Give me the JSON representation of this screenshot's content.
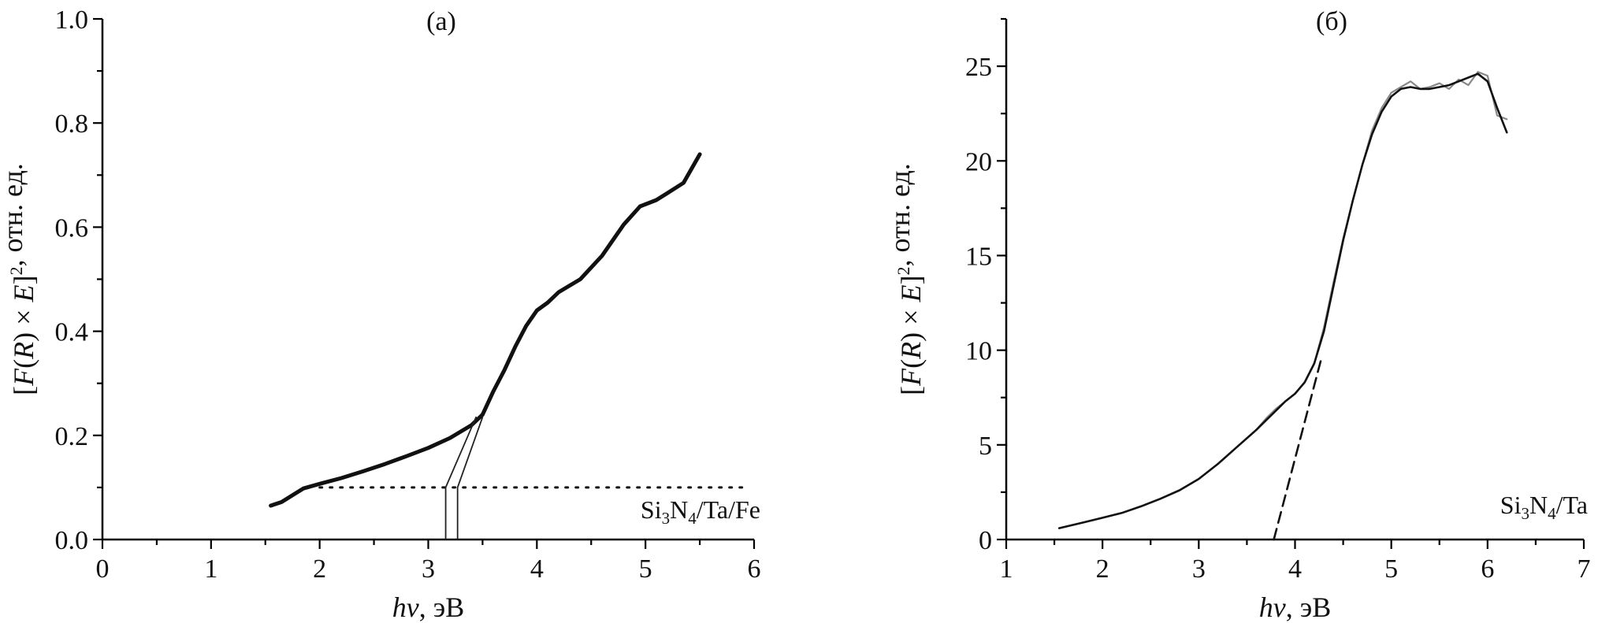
{
  "chart_data": [
    {
      "type": "line",
      "panel_label": "(а)",
      "sample_label": {
        "main": [
          "Si",
          "N",
          "/Ta/Fe"
        ],
        "subs": [
          "3",
          "4"
        ]
      },
      "xlabel": {
        "italic": "hv",
        "rest": ", эВ"
      },
      "ylabel": {
        "parts": [
          "[",
          "F",
          "(",
          "R",
          ") × ",
          "E",
          "]",
          ", отн. ед."
        ],
        "sup": "2"
      },
      "xlim": [
        0,
        6
      ],
      "ylim": [
        0,
        1.0
      ],
      "x_ticks": [
        0,
        1,
        2,
        3,
        4,
        5,
        6
      ],
      "x_tick_labels": [
        "0",
        "1",
        "2",
        "3",
        "4",
        "5",
        "6"
      ],
      "y_ticks": [
        0,
        0.2,
        0.4,
        0.6,
        0.8,
        1.0
      ],
      "y_tick_labels": [
        "0.0",
        "0.2",
        "0.4",
        "0.6",
        "0.8",
        "1.0"
      ],
      "grid": false,
      "series": [
        {
          "style": "solid-thick",
          "color": "#111111",
          "x": [
            1.55,
            1.65,
            1.75,
            1.85,
            2.0,
            2.2,
            2.4,
            2.6,
            2.8,
            3.0,
            3.2,
            3.4,
            3.5,
            3.6,
            3.7,
            3.8,
            3.9,
            4.0,
            4.1,
            4.2,
            4.4,
            4.6,
            4.8,
            4.95,
            5.1,
            5.2,
            5.35,
            5.5
          ],
          "y": [
            0.065,
            0.072,
            0.085,
            0.098,
            0.107,
            0.118,
            0.131,
            0.145,
            0.16,
            0.176,
            0.195,
            0.22,
            0.24,
            0.285,
            0.325,
            0.37,
            0.41,
            0.44,
            0.455,
            0.475,
            0.5,
            0.545,
            0.605,
            0.64,
            0.652,
            0.665,
            0.685,
            0.74
          ]
        },
        {
          "style": "dotted",
          "color": "#111111",
          "x": [
            2.0,
            5.95
          ],
          "y": [
            0.1,
            0.1
          ]
        },
        {
          "style": "thin-double",
          "color": "#222222",
          "x": [
            3.16,
            3.44
          ],
          "y": [
            0.1,
            0.235
          ]
        },
        {
          "style": "thin-double",
          "color": "#222222",
          "x": [
            3.27,
            3.5
          ],
          "y": [
            0.1,
            0.235
          ]
        },
        {
          "style": "thin-double",
          "color": "#222222",
          "x": [
            3.16,
            3.16
          ],
          "y": [
            0.0,
            0.1
          ]
        },
        {
          "style": "thin-double",
          "color": "#222222",
          "x": [
            3.27,
            3.27
          ],
          "y": [
            0.0,
            0.1
          ]
        }
      ]
    },
    {
      "type": "line",
      "panel_label": "(б)",
      "sample_label": {
        "main": [
          "Si",
          "N",
          "/Ta"
        ],
        "subs": [
          "3",
          "4"
        ]
      },
      "xlabel": {
        "italic": "hv",
        "rest": ", эВ"
      },
      "ylabel": {
        "parts": [
          "[",
          "F",
          "(",
          "R",
          ") × ",
          "E",
          "]",
          ", отн. ед."
        ],
        "sup": "2"
      },
      "xlim": [
        1,
        7
      ],
      "ylim": [
        0,
        27.5
      ],
      "x_ticks": [
        1,
        2,
        3,
        4,
        5,
        6,
        7
      ],
      "x_tick_labels": [
        "1",
        "2",
        "3",
        "4",
        "5",
        "6",
        "7"
      ],
      "y_ticks": [
        0,
        5,
        10,
        15,
        20,
        25
      ],
      "y_tick_labels": [
        "0",
        "5",
        "10",
        "15",
        "20",
        "25"
      ],
      "grid": false,
      "series": [
        {
          "style": "noisy-gray",
          "color": "#888888",
          "x": [
            1.55,
            1.8,
            2.0,
            2.2,
            2.4,
            2.6,
            2.8,
            3.0,
            3.2,
            3.4,
            3.6,
            3.7,
            3.8,
            3.9,
            4.0,
            4.1,
            4.2,
            4.3,
            4.4,
            4.5,
            4.6,
            4.7,
            4.8,
            4.9,
            5.0,
            5.1,
            5.2,
            5.3,
            5.4,
            5.5,
            5.6,
            5.7,
            5.8,
            5.9,
            6.0,
            6.1,
            6.2
          ],
          "y": [
            0.6,
            0.9,
            1.15,
            1.4,
            1.75,
            2.15,
            2.6,
            3.2,
            4.0,
            4.9,
            5.8,
            6.4,
            6.9,
            7.3,
            7.7,
            8.3,
            9.3,
            11.2,
            13.6,
            15.9,
            17.9,
            19.8,
            21.6,
            22.8,
            23.6,
            23.9,
            24.2,
            23.8,
            23.9,
            24.1,
            23.8,
            24.3,
            24.0,
            24.7,
            24.5,
            22.4,
            22.2
          ]
        },
        {
          "style": "solid",
          "color": "#111111",
          "x": [
            1.55,
            1.8,
            2.0,
            2.2,
            2.4,
            2.6,
            2.8,
            3.0,
            3.2,
            3.4,
            3.6,
            3.7,
            3.8,
            3.9,
            4.0,
            4.1,
            4.2,
            4.3,
            4.4,
            4.5,
            4.6,
            4.7,
            4.8,
            4.9,
            5.0,
            5.1,
            5.2,
            5.3,
            5.4,
            5.5,
            5.6,
            5.7,
            5.8,
            5.9,
            6.0,
            6.1,
            6.2
          ],
          "y": [
            0.6,
            0.9,
            1.15,
            1.4,
            1.75,
            2.15,
            2.6,
            3.2,
            4.0,
            4.9,
            5.8,
            6.3,
            6.8,
            7.3,
            7.7,
            8.3,
            9.3,
            11.0,
            13.4,
            15.8,
            17.9,
            19.8,
            21.4,
            22.6,
            23.4,
            23.8,
            23.9,
            23.8,
            23.8,
            23.9,
            24.0,
            24.2,
            24.4,
            24.6,
            24.2,
            22.8,
            21.5
          ]
        },
        {
          "style": "dashed",
          "color": "#111111",
          "x": [
            3.78,
            4.27
          ],
          "y": [
            0.0,
            9.5
          ]
        }
      ]
    }
  ]
}
